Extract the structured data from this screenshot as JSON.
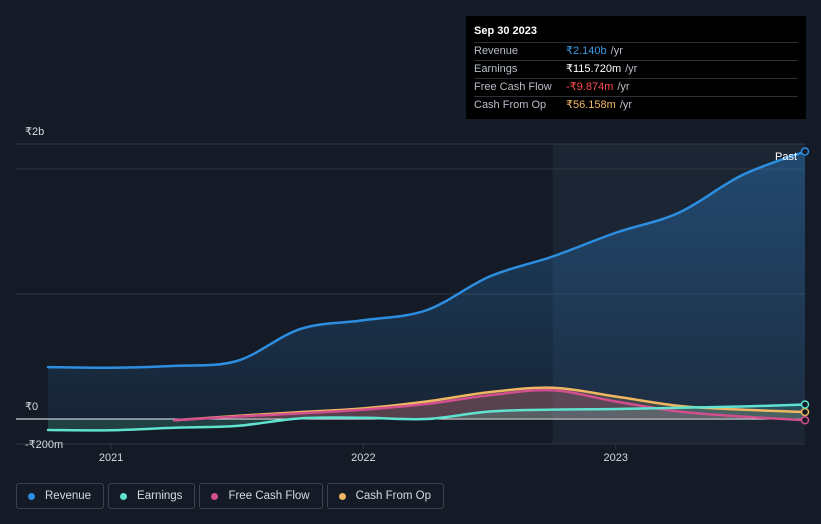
{
  "tooltip": {
    "date": "Sep 30 2023",
    "rows": [
      {
        "label": "Revenue",
        "value": "₹2.140b",
        "unit": "/yr",
        "color": "#3b9ae1"
      },
      {
        "label": "Earnings",
        "value": "₹115.720m",
        "unit": "/yr",
        "color": "#ffffff"
      },
      {
        "label": "Free Cash Flow",
        "value": "-₹9.874m",
        "unit": "/yr",
        "color": "#ff4d4f"
      },
      {
        "label": "Cash From Op",
        "value": "₹56.158m",
        "unit": "/yr",
        "color": "#f0b763"
      }
    ]
  },
  "legend": [
    {
      "label": "Revenue",
      "color": "#2d8ee0"
    },
    {
      "label": "Earnings",
      "color": "#5fe3cf"
    },
    {
      "label": "Free Cash Flow",
      "color": "#d14e8f"
    },
    {
      "label": "Cash From Op",
      "color": "#f0b763"
    }
  ],
  "chart_data": {
    "type": "line",
    "title": "",
    "xlabel": "",
    "ylabel": "",
    "y_tick_labels": [
      "₹2b",
      "₹0",
      "-₹200m"
    ],
    "x_tick_labels": [
      "2021",
      "2022",
      "2023"
    ],
    "past_label": "Past",
    "ylim": [
      -200,
      2200
    ],
    "xlim": [
      2020.75,
      2023.75
    ],
    "x_ticks": [
      2021,
      2022,
      2023
    ],
    "y_ticks": [
      2000,
      0,
      -200
    ],
    "grid": true,
    "legend_position": "bottom-left",
    "past_start": 2022.75,
    "series": [
      {
        "name": "Revenue",
        "color": "#2d8ee0",
        "points": [
          [
            2020.75,
            415
          ],
          [
            2021.0,
            410
          ],
          [
            2021.25,
            425
          ],
          [
            2021.5,
            465
          ],
          [
            2021.75,
            720
          ],
          [
            2022.0,
            790
          ],
          [
            2022.25,
            870
          ],
          [
            2022.5,
            1140
          ],
          [
            2022.75,
            1300
          ],
          [
            2023.0,
            1490
          ],
          [
            2023.25,
            1650
          ],
          [
            2023.5,
            1950
          ],
          [
            2023.75,
            2140
          ]
        ]
      },
      {
        "name": "Earnings",
        "color": "#5fe3cf",
        "points": [
          [
            2020.75,
            -88
          ],
          [
            2021.0,
            -90
          ],
          [
            2021.25,
            -70
          ],
          [
            2021.5,
            -55
          ],
          [
            2021.75,
            5
          ],
          [
            2022.0,
            10
          ],
          [
            2022.25,
            0
          ],
          [
            2022.5,
            60
          ],
          [
            2022.75,
            75
          ],
          [
            2023.0,
            80
          ],
          [
            2023.25,
            90
          ],
          [
            2023.5,
            100
          ],
          [
            2023.75,
            116
          ]
        ]
      },
      {
        "name": "Free Cash Flow",
        "color": "#d14e8f",
        "points": [
          [
            2021.25,
            -10
          ],
          [
            2021.5,
            20
          ],
          [
            2021.75,
            45
          ],
          [
            2022.0,
            75
          ],
          [
            2022.25,
            120
          ],
          [
            2022.5,
            190
          ],
          [
            2022.75,
            230
          ],
          [
            2023.0,
            140
          ],
          [
            2023.25,
            60
          ],
          [
            2023.5,
            20
          ],
          [
            2023.75,
            -10
          ]
        ]
      },
      {
        "name": "Cash From Op",
        "color": "#f0b763",
        "points": [
          [
            2021.25,
            -10
          ],
          [
            2021.5,
            25
          ],
          [
            2021.75,
            55
          ],
          [
            2022.0,
            85
          ],
          [
            2022.25,
            140
          ],
          [
            2022.5,
            215
          ],
          [
            2022.75,
            250
          ],
          [
            2023.0,
            180
          ],
          [
            2023.25,
            105
          ],
          [
            2023.5,
            75
          ],
          [
            2023.75,
            56
          ]
        ]
      }
    ]
  }
}
